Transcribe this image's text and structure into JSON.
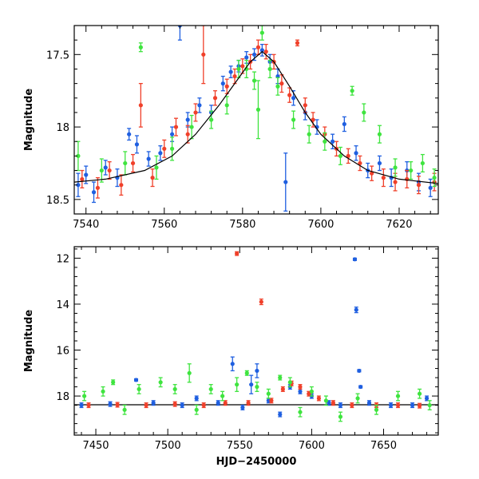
{
  "chart_data": [
    {
      "type": "scatter",
      "panel": "top",
      "title": "",
      "xlabel": "",
      "ylabel": "Magnitude",
      "xlim": [
        7537,
        7630
      ],
      "ylim": [
        18.6,
        17.3
      ],
      "y_inverted": true,
      "x_ticks": [
        7540,
        7560,
        7580,
        7600,
        7620
      ],
      "x_tick_labels": [
        "7540",
        "7560",
        "7580",
        "7600",
        "7620"
      ],
      "y_ticks": [
        17.5,
        18.0,
        18.5
      ],
      "y_tick_labels": [
        "17.5",
        "18",
        "18.5"
      ],
      "colors": {
        "blue": "#1f5fe0",
        "red": "#f0402a",
        "green": "#3fe43f"
      },
      "model_curve": {
        "x": [
          7537,
          7545,
          7555,
          7562,
          7568,
          7574,
          7578,
          7582,
          7585,
          7588,
          7592,
          7596,
          7600,
          7606,
          7612,
          7620,
          7630
        ],
        "y": [
          18.38,
          18.36,
          18.3,
          18.2,
          18.05,
          17.85,
          17.7,
          17.55,
          17.48,
          17.55,
          17.72,
          17.9,
          18.05,
          18.2,
          18.3,
          18.36,
          18.39
        ]
      },
      "series": [
        {
          "color": "blue",
          "points": [
            [
              7538,
              18.4,
              0.08
            ],
            [
              7540,
              18.33,
              0.06
            ],
            [
              7542,
              18.45,
              0.07
            ],
            [
              7545,
              18.28,
              0.05
            ],
            [
              7548,
              18.35,
              0.06
            ],
            [
              7551,
              18.05,
              0.04
            ],
            [
              7553,
              18.12,
              0.06
            ],
            [
              7556,
              18.22,
              0.05
            ],
            [
              7559,
              18.18,
              0.05
            ],
            [
              7562,
              18.05,
              0.05
            ],
            [
              7564,
              17.3,
              0.1
            ],
            [
              7566,
              17.95,
              0.05
            ],
            [
              7569,
              17.85,
              0.05
            ],
            [
              7572,
              17.9,
              0.05
            ],
            [
              7575,
              17.7,
              0.05
            ],
            [
              7577,
              17.62,
              0.04
            ],
            [
              7579,
              17.58,
              0.04
            ],
            [
              7581,
              17.52,
              0.04
            ],
            [
              7583,
              17.5,
              0.04
            ],
            [
              7585,
              17.47,
              0.04
            ],
            [
              7587,
              17.55,
              0.05
            ],
            [
              7589,
              17.65,
              0.05
            ],
            [
              7591,
              18.38,
              0.2
            ],
            [
              7593,
              17.8,
              0.05
            ],
            [
              7596,
              17.9,
              0.05
            ],
            [
              7599,
              18.0,
              0.05
            ],
            [
              7603,
              18.1,
              0.05
            ],
            [
              7606,
              17.98,
              0.05
            ],
            [
              7609,
              18.18,
              0.05
            ],
            [
              7612,
              18.3,
              0.05
            ],
            [
              7615,
              18.25,
              0.05
            ],
            [
              7618,
              18.35,
              0.06
            ],
            [
              7622,
              18.3,
              0.06
            ],
            [
              7625,
              18.38,
              0.06
            ],
            [
              7628,
              18.42,
              0.06
            ]
          ]
        },
        {
          "color": "red",
          "points": [
            [
              7539,
              18.36,
              0.06
            ],
            [
              7543,
              18.42,
              0.07
            ],
            [
              7546,
              18.3,
              0.06
            ],
            [
              7549,
              18.4,
              0.07
            ],
            [
              7552,
              18.25,
              0.06
            ],
            [
              7554,
              17.85,
              0.15
            ],
            [
              7557,
              18.35,
              0.06
            ],
            [
              7560,
              18.15,
              0.06
            ],
            [
              7563,
              18.0,
              0.06
            ],
            [
              7566,
              18.05,
              0.06
            ],
            [
              7568,
              17.9,
              0.06
            ],
            [
              7570,
              17.5,
              0.2
            ],
            [
              7573,
              17.8,
              0.05
            ],
            [
              7576,
              17.72,
              0.05
            ],
            [
              7578,
              17.65,
              0.05
            ],
            [
              7580,
              17.58,
              0.05
            ],
            [
              7582,
              17.55,
              0.05
            ],
            [
              7584,
              17.45,
              0.05
            ],
            [
              7586,
              17.48,
              0.05
            ],
            [
              7588,
              17.55,
              0.05
            ],
            [
              7590,
              17.7,
              0.06
            ],
            [
              7592,
              17.78,
              0.05
            ],
            [
              7594,
              17.42,
              0.02
            ],
            [
              7596,
              17.85,
              0.05
            ],
            [
              7598,
              17.95,
              0.05
            ],
            [
              7601,
              18.05,
              0.05
            ],
            [
              7604,
              18.15,
              0.05
            ],
            [
              7607,
              18.2,
              0.05
            ],
            [
              7610,
              18.25,
              0.05
            ],
            [
              7613,
              18.32,
              0.05
            ],
            [
              7616,
              18.35,
              0.06
            ],
            [
              7619,
              18.38,
              0.06
            ],
            [
              7622,
              18.36,
              0.06
            ],
            [
              7625,
              18.4,
              0.06
            ],
            [
              7629,
              18.38,
              0.06
            ]
          ]
        },
        {
          "color": "green",
          "points": [
            [
              7538,
              18.2,
              0.1
            ],
            [
              7544,
              18.3,
              0.08
            ],
            [
              7550,
              18.25,
              0.08
            ],
            [
              7554,
              17.45,
              0.03
            ],
            [
              7558,
              18.28,
              0.08
            ],
            [
              7562,
              18.15,
              0.08
            ],
            [
              7567,
              18.0,
              0.08
            ],
            [
              7572,
              17.95,
              0.06
            ],
            [
              7576,
              17.85,
              0.06
            ],
            [
              7579,
              17.6,
              0.06
            ],
            [
              7581,
              17.6,
              0.06
            ],
            [
              7583,
              17.68,
              0.06
            ],
            [
              7584,
              17.88,
              0.2
            ],
            [
              7585,
              17.35,
              0.05
            ],
            [
              7587,
              17.6,
              0.06
            ],
            [
              7589,
              17.72,
              0.06
            ],
            [
              7593,
              17.95,
              0.06
            ],
            [
              7597,
              18.05,
              0.06
            ],
            [
              7601,
              18.1,
              0.06
            ],
            [
              7605,
              18.2,
              0.06
            ],
            [
              7608,
              17.75,
              0.03
            ],
            [
              7611,
              17.9,
              0.06
            ],
            [
              7615,
              18.05,
              0.06
            ],
            [
              7619,
              18.28,
              0.06
            ],
            [
              7623,
              18.3,
              0.06
            ],
            [
              7626,
              18.25,
              0.06
            ],
            [
              7629,
              18.35,
              0.06
            ]
          ]
        }
      ]
    },
    {
      "type": "scatter",
      "panel": "bottom",
      "title": "",
      "xlabel": "HJD−2450000",
      "ylabel": "Magnitude",
      "xlim": [
        7435,
        7688
      ],
      "ylim": [
        19.7,
        11.5
      ],
      "y_inverted": true,
      "x_ticks": [
        7450,
        7500,
        7550,
        7600,
        7650
      ],
      "x_tick_labels": [
        "7450",
        "7500",
        "7550",
        "7600",
        "7650"
      ],
      "y_ticks": [
        12,
        14,
        16,
        18
      ],
      "y_tick_labels": [
        "12",
        "14",
        "16",
        "18"
      ],
      "colors": {
        "blue": "#1f5fe0",
        "red": "#f0402a",
        "green": "#3fe43f"
      },
      "baseline": 18.38,
      "series": [
        {
          "color": "blue",
          "points": [
            [
              7440,
              18.4,
              0.1
            ],
            [
              7460,
              18.35,
              0.1
            ],
            [
              7478,
              17.3,
              0.05
            ],
            [
              7490,
              18.3,
              0.1
            ],
            [
              7510,
              18.4,
              0.1
            ],
            [
              7520,
              18.1,
              0.1
            ],
            [
              7535,
              18.3,
              0.1
            ],
            [
              7545,
              16.6,
              0.3
            ],
            [
              7552,
              18.5,
              0.1
            ],
            [
              7558,
              17.5,
              0.4
            ],
            [
              7562,
              16.9,
              0.3
            ],
            [
              7570,
              18.2,
              0.1
            ],
            [
              7578,
              18.8,
              0.1
            ],
            [
              7585,
              17.6,
              0.1
            ],
            [
              7592,
              17.8,
              0.1
            ],
            [
              7600,
              18.0,
              0.1
            ],
            [
              7612,
              18.3,
              0.1
            ],
            [
              7620,
              18.4,
              0.1
            ],
            [
              7630,
              12.05,
              0.05
            ],
            [
              7631,
              14.25,
              0.12
            ],
            [
              7633,
              16.9,
              0.05
            ],
            [
              7634,
              17.6,
              0.05
            ],
            [
              7640,
              18.3,
              0.1
            ],
            [
              7655,
              18.4,
              0.1
            ],
            [
              7670,
              18.4,
              0.1
            ],
            [
              7680,
              18.1,
              0.1
            ]
          ]
        },
        {
          "color": "red",
          "points": [
            [
              7445,
              18.4,
              0.1
            ],
            [
              7465,
              18.38,
              0.1
            ],
            [
              7485,
              18.4,
              0.1
            ],
            [
              7505,
              18.35,
              0.1
            ],
            [
              7525,
              18.4,
              0.1
            ],
            [
              7540,
              18.3,
              0.1
            ],
            [
              7548,
              11.8,
              0.08
            ],
            [
              7556,
              18.3,
              0.1
            ],
            [
              7565,
              13.9,
              0.12
            ],
            [
              7572,
              18.2,
              0.1
            ],
            [
              7580,
              17.7,
              0.1
            ],
            [
              7586,
              17.45,
              0.1
            ],
            [
              7592,
              17.6,
              0.1
            ],
            [
              7598,
              17.9,
              0.1
            ],
            [
              7605,
              18.1,
              0.1
            ],
            [
              7615,
              18.3,
              0.1
            ],
            [
              7628,
              18.4,
              0.1
            ],
            [
              7645,
              18.4,
              0.1
            ],
            [
              7660,
              18.4,
              0.1
            ],
            [
              7675,
              18.42,
              0.1
            ]
          ]
        },
        {
          "color": "green",
          "points": [
            [
              7442,
              18.0,
              0.2
            ],
            [
              7455,
              17.8,
              0.2
            ],
            [
              7462,
              17.4,
              0.1
            ],
            [
              7470,
              18.6,
              0.2
            ],
            [
              7480,
              17.7,
              0.2
            ],
            [
              7495,
              17.4,
              0.2
            ],
            [
              7505,
              17.7,
              0.2
            ],
            [
              7515,
              17.0,
              0.4
            ],
            [
              7520,
              18.6,
              0.2
            ],
            [
              7530,
              17.7,
              0.2
            ],
            [
              7538,
              18.0,
              0.2
            ],
            [
              7548,
              17.5,
              0.3
            ],
            [
              7555,
              17.0,
              0.1
            ],
            [
              7562,
              17.6,
              0.2
            ],
            [
              7570,
              17.9,
              0.2
            ],
            [
              7578,
              17.2,
              0.1
            ],
            [
              7585,
              17.4,
              0.2
            ],
            [
              7592,
              18.7,
              0.2
            ],
            [
              7600,
              17.8,
              0.2
            ],
            [
              7610,
              18.2,
              0.2
            ],
            [
              7620,
              18.9,
              0.2
            ],
            [
              7632,
              18.1,
              0.2
            ],
            [
              7645,
              18.6,
              0.2
            ],
            [
              7660,
              18.0,
              0.2
            ],
            [
              7675,
              17.9,
              0.2
            ],
            [
              7682,
              18.4,
              0.2
            ]
          ]
        }
      ]
    }
  ]
}
